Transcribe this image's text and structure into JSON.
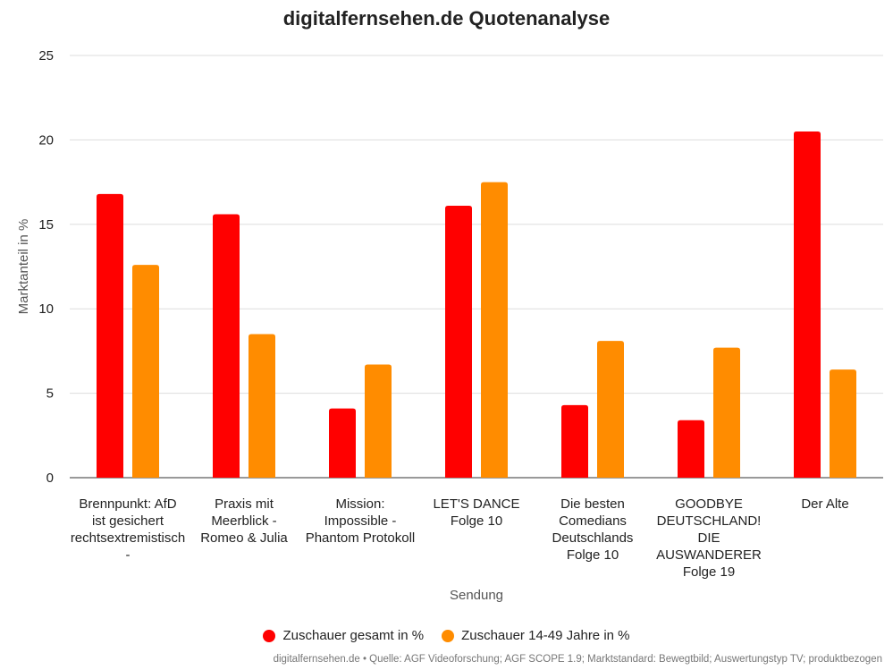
{
  "chart_data": {
    "type": "bar",
    "title": "digitalfernsehen.de Quotenanalyse",
    "xlabel": "Sendung",
    "ylabel": "Marktanteil in %",
    "ylim": [
      0,
      25
    ],
    "yticks": [
      "0",
      "5",
      "10",
      "15",
      "20",
      "25"
    ],
    "grid": true,
    "legend_position": "bottom",
    "categories": [
      [
        "Brennpunkt: AfD",
        "ist gesichert",
        "rechtsextremistisch",
        "-"
      ],
      [
        "Praxis mit",
        "Meerblick -",
        "Romeo & Julia"
      ],
      [
        "Mission:",
        "Impossible -",
        "Phantom Protokoll"
      ],
      [
        "LET'S DANCE",
        "Folge 10"
      ],
      [
        "Die besten",
        "Comedians",
        "Deutschlands",
        "Folge 10"
      ],
      [
        "GOODBYE",
        "DEUTSCHLAND!",
        "DIE",
        "AUSWANDERER",
        "Folge 19"
      ],
      [
        "Der Alte"
      ]
    ],
    "series": [
      {
        "name": "Zuschauer gesamt in %",
        "color": "#ff0000",
        "values": [
          16.8,
          15.6,
          4.1,
          16.1,
          4.3,
          3.4,
          20.5
        ]
      },
      {
        "name": "Zuschauer 14-49 Jahre in %",
        "color": "#ff8c00",
        "values": [
          12.6,
          8.5,
          6.7,
          17.5,
          8.1,
          7.7,
          6.4
        ]
      }
    ]
  },
  "source": "digitalfernsehen.de • Quelle: AGF Videoforschung; AGF SCOPE 1.9; Marktstandard: Bewegtbild; Auswertungstyp TV; produktbezogen"
}
